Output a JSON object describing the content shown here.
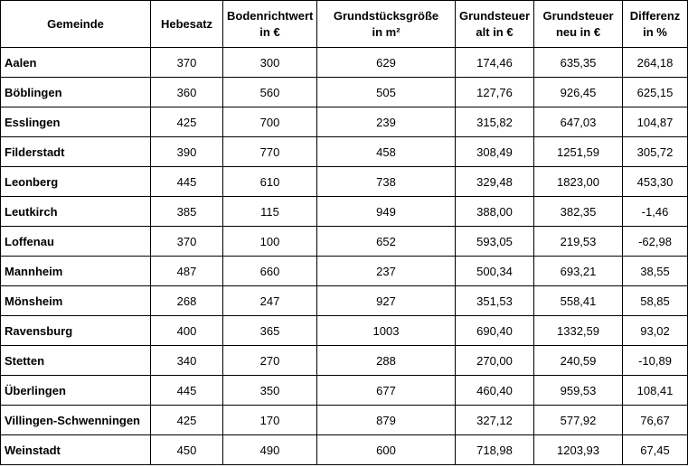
{
  "table": {
    "header": [
      [
        "Gemeinde"
      ],
      [
        "Hebesatz"
      ],
      [
        "Bodenrichtwert",
        "in €"
      ],
      [
        "Grundstücksgröße",
        "in m²"
      ],
      [
        "Grundsteuer",
        "alt in €"
      ],
      [
        "Grundsteuer",
        "neu in €"
      ],
      [
        "Differenz",
        "in %"
      ]
    ],
    "rows": [
      [
        "Aalen",
        "370",
        "300",
        "629",
        "174,46",
        "635,35",
        "264,18"
      ],
      [
        "Böblingen",
        "360",
        "560",
        "505",
        "127,76",
        "926,45",
        "625,15"
      ],
      [
        "Esslingen",
        "425",
        "700",
        "239",
        "315,82",
        "647,03",
        "104,87"
      ],
      [
        "Filderstadt",
        "390",
        "770",
        "458",
        "308,49",
        "1251,59",
        "305,72"
      ],
      [
        "Leonberg",
        "445",
        "610",
        "738",
        "329,48",
        "1823,00",
        "453,30"
      ],
      [
        "Leutkirch",
        "385",
        "115",
        "949",
        "388,00",
        "382,35",
        "-1,46"
      ],
      [
        "Loffenau",
        "370",
        "100",
        "652",
        "593,05",
        "219,53",
        "-62,98"
      ],
      [
        "Mannheim",
        "487",
        "660",
        "237",
        "500,34",
        "693,21",
        "38,55"
      ],
      [
        "Mönsheim",
        "268",
        "247",
        "927",
        "351,53",
        "558,41",
        "58,85"
      ],
      [
        "Ravensburg",
        "400",
        "365",
        "1003",
        "690,40",
        "1332,59",
        "93,02"
      ],
      [
        "Stetten",
        "340",
        "270",
        "288",
        "270,00",
        "240,59",
        "-10,89"
      ],
      [
        "Überlingen",
        "445",
        "350",
        "677",
        "460,40",
        "959,53",
        "108,41"
      ],
      [
        "Villingen-Schwenningen",
        "425",
        "170",
        "879",
        "327,12",
        "577,92",
        "76,67"
      ],
      [
        "Weinstadt",
        "450",
        "490",
        "600",
        "718,98",
        "1203,93",
        "67,45"
      ]
    ]
  }
}
